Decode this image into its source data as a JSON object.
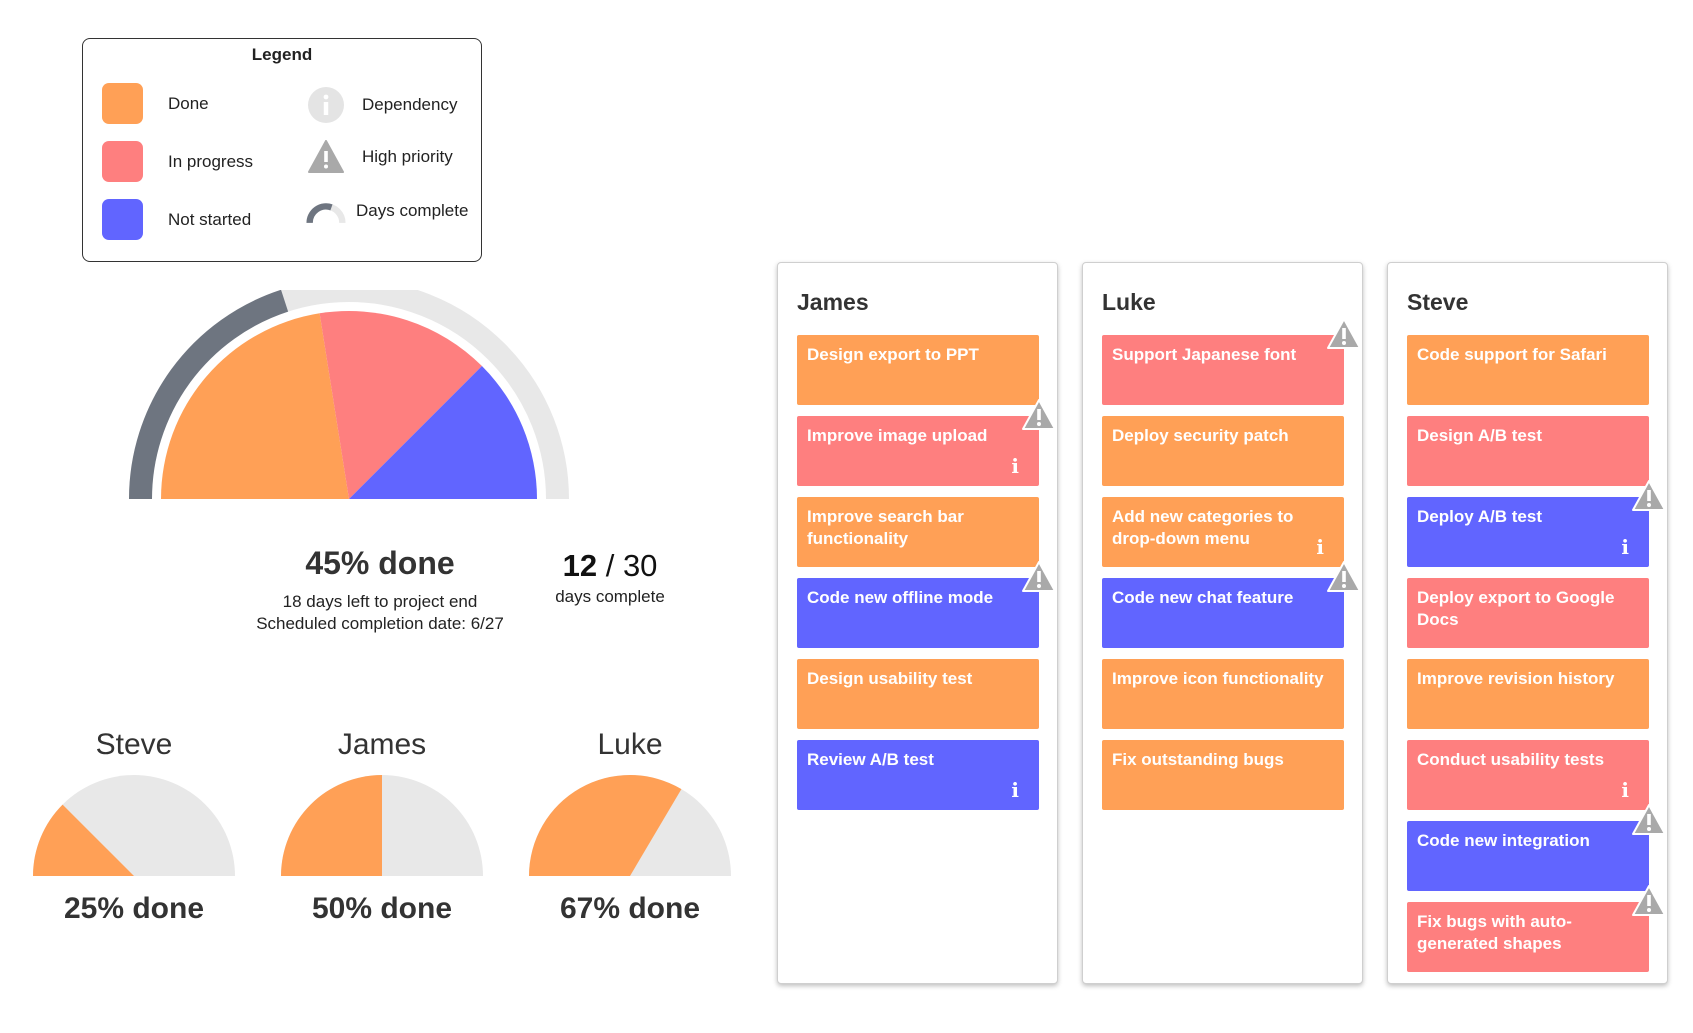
{
  "legend": {
    "title": "Legend",
    "items": [
      {
        "label": "Done",
        "color": "#ffa056"
      },
      {
        "label": "In progress",
        "color": "#fe7f7f"
      },
      {
        "label": "Not started",
        "color": "#6165ff"
      }
    ],
    "icons": [
      {
        "label": "Dependency",
        "icon": "info-icon"
      },
      {
        "label": "High priority",
        "icon": "warning-icon"
      },
      {
        "label": "Days complete",
        "icon": "arc-icon"
      }
    ]
  },
  "summary": {
    "percent_label": "45% done",
    "days_left": "18 days left to project end",
    "completion_date": "Scheduled completion date: 6/27",
    "days_done": "12",
    "days_separator": "/",
    "days_total": "30",
    "days_label": "days complete"
  },
  "chart_data": [
    {
      "type": "pie",
      "title": "",
      "shape": "half-pie",
      "categories": [
        "Done",
        "In progress",
        "Not started"
      ],
      "values": [
        45,
        30,
        25
      ],
      "colors": [
        "#ffa056",
        "#fe7f7f",
        "#6165ff"
      ],
      "days_complete": 12,
      "days_total": 30
    }
  ],
  "people": [
    {
      "name": "Steve",
      "percent_label": "25% done",
      "fraction": 0.25
    },
    {
      "name": "James",
      "percent_label": "50% done",
      "fraction": 0.5
    },
    {
      "name": "Luke",
      "percent_label": "67% done",
      "fraction": 0.67
    }
  ],
  "board": {
    "columns": [
      {
        "name": "James",
        "cards": [
          {
            "title": "Design export to PPT",
            "status": "done"
          },
          {
            "title": "Improve image upload",
            "status": "progress",
            "dependency": true,
            "priority": true
          },
          {
            "title": "Improve search bar functionality",
            "status": "done"
          },
          {
            "title": "Code new offline mode",
            "status": "notstarted",
            "priority": true
          },
          {
            "title": "Design usability test",
            "status": "done"
          },
          {
            "title": "Review A/B test",
            "status": "notstarted",
            "dependency": true
          }
        ]
      },
      {
        "name": "Luke",
        "cards": [
          {
            "title": "Support Japanese font",
            "status": "progress",
            "priority": true
          },
          {
            "title": "Deploy security patch",
            "status": "done"
          },
          {
            "title": "Add new categories to drop-down menu",
            "status": "done",
            "dependency": true
          },
          {
            "title": "Code new chat feature",
            "status": "notstarted",
            "priority": true
          },
          {
            "title": "Improve icon functionality",
            "status": "done"
          },
          {
            "title": "Fix outstanding bugs",
            "status": "done"
          }
        ]
      },
      {
        "name": "Steve",
        "cards": [
          {
            "title": "Code support for Safari",
            "status": "done"
          },
          {
            "title": "Design A/B test",
            "status": "progress"
          },
          {
            "title": "Deploy A/B test",
            "status": "notstarted",
            "dependency": true,
            "priority": true
          },
          {
            "title": "Deploy export to Google Docs",
            "status": "progress"
          },
          {
            "title": "Improve revision history",
            "status": "done"
          },
          {
            "title": "Conduct usability tests",
            "status": "progress",
            "dependency": true
          },
          {
            "title": "Code new integration",
            "status": "notstarted",
            "priority": true
          },
          {
            "title": "Fix bugs with auto-generated shapes",
            "status": "progress",
            "priority": true
          }
        ]
      }
    ]
  }
}
